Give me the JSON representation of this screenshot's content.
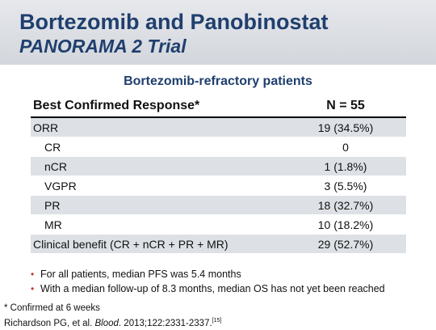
{
  "header": {
    "title": "Bortezomib and Panobinostat",
    "subtitle": "PANORAMA 2 Trial"
  },
  "section_title": "Bortezomib-refractory patients",
  "table": {
    "columns": [
      "Best Confirmed Response*",
      "N = 55"
    ],
    "rows": [
      {
        "label": "ORR",
        "value": "19 (34.5%)"
      },
      {
        "label": "CR",
        "value": "0"
      },
      {
        "label": "nCR",
        "value": "1 (1.8%)"
      },
      {
        "label": "VGPR",
        "value": "3 (5.5%)"
      },
      {
        "label": "PR",
        "value": "18 (32.7%)"
      },
      {
        "label": "MR",
        "value": "10 (18.2%)"
      },
      {
        "label": "Clinical benefit (CR + nCR + PR + MR)",
        "value": "29 (52.7%)"
      }
    ]
  },
  "bullets": [
    "For all patients, median PFS was 5.4 months",
    "With a median follow-up of 8.3 months, median OS has not yet been reached"
  ],
  "bullet_symbol": "•",
  "footnote": {
    "note": "* Confirmed at 6 weeks",
    "citation_authors": "Richardson PG, et al. ",
    "citation_journal": "Blood",
    "citation_rest": ". 2013;122:2331-2337.",
    "citation_ref": "[15]"
  }
}
